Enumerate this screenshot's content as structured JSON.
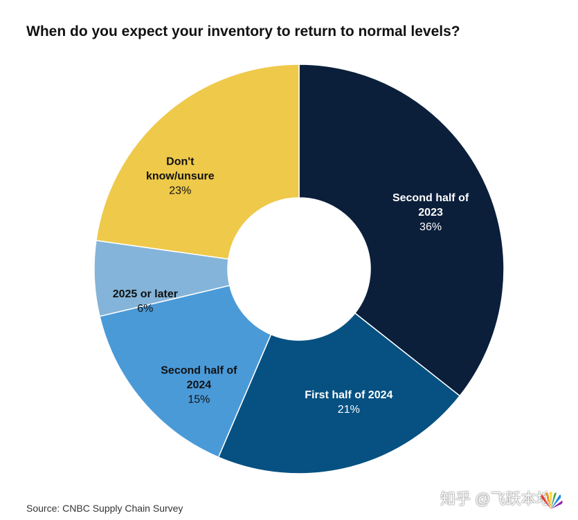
{
  "title": "When do you expect your inventory to return to normal levels?",
  "source": "Source: CNBC Supply Chain Survey",
  "watermark": "知乎 @飞跃本地",
  "logo_text": "CNBC",
  "chart_data": {
    "type": "pie",
    "donut": true,
    "title": "When do you expect your inventory to return to normal levels?",
    "start_angle_deg": 0,
    "direction": "clockwise",
    "slices": [
      {
        "label_lines": [
          "Second half of",
          "2023"
        ],
        "value": 36,
        "value_label": "36%",
        "color": "#0b1f3b",
        "text_color": "#ffffff"
      },
      {
        "label_lines": [
          "First half of 2024"
        ],
        "value": 21,
        "value_label": "21%",
        "color": "#065182",
        "text_color": "#ffffff"
      },
      {
        "label_lines": [
          "Second half of",
          "2024"
        ],
        "value": 15,
        "value_label": "15%",
        "color": "#4a9ad8",
        "text_color": "#111111"
      },
      {
        "label_lines": [
          "2025 or later"
        ],
        "value": 6,
        "value_label": "6%",
        "color": "#84b4d9",
        "text_color": "#111111"
      },
      {
        "label_lines": [
          "Don't",
          "know/unsure"
        ],
        "value": 23,
        "value_label": "23%",
        "color": "#eec94a",
        "text_color": "#111111"
      }
    ]
  }
}
